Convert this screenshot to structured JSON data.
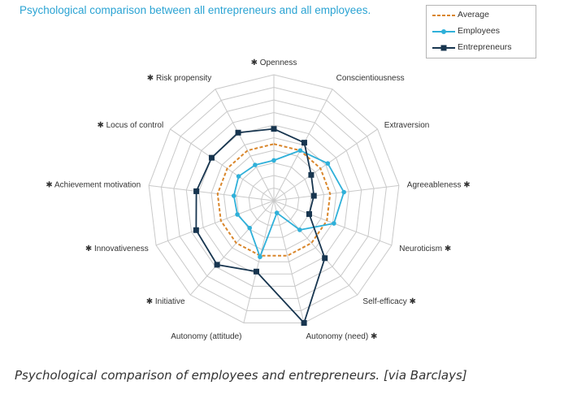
{
  "chart_data": {
    "type": "radar",
    "title": "Psychological comparison between all entrepreneurs and all employees.",
    "axes": [
      {
        "label": "✱ Openness"
      },
      {
        "label": "Conscientiousness"
      },
      {
        "label": "Extraversion"
      },
      {
        "label": "Agreeableness ✱"
      },
      {
        "label": "Neuroticism ✱"
      },
      {
        "label": "Self-efficacy ✱"
      },
      {
        "label": "Autonomy (need) ✱"
      },
      {
        "label": "Autonomy (attitude)"
      },
      {
        "label": "✱ Initiative"
      },
      {
        "label": "✱ Innovativeness"
      },
      {
        "label": "✱ Achievement motivation"
      },
      {
        "label": "✱ Locus of control"
      },
      {
        "label": "✱ Risk propensity"
      }
    ],
    "rings": 10,
    "max": 10,
    "series": [
      {
        "name": "Average",
        "color": "#d9862b",
        "marker": "none",
        "dash": true,
        "values": [
          4.5,
          4.5,
          4.5,
          4.5,
          4.5,
          4.5,
          4.5,
          4.5,
          4.5,
          4.5,
          4.5,
          4.5,
          4.5
        ]
      },
      {
        "name": "Employees",
        "color": "#2fb0d9",
        "marker": "circle",
        "dash": false,
        "values": [
          3.2,
          4.5,
          5.2,
          5.6,
          5.1,
          3.1,
          1.0,
          4.6,
          2.9,
          3.1,
          3.2,
          3.4,
          3.2
        ]
      },
      {
        "name": "Entrepreneurs",
        "color": "#17354f",
        "marker": "square",
        "dash": false,
        "values": [
          5.7,
          5.2,
          3.6,
          3.2,
          3.0,
          6.1,
          10.0,
          5.8,
          6.8,
          6.6,
          6.2,
          6.0,
          6.1
        ]
      }
    ],
    "legend_position": "top-right"
  },
  "caption": "Psychological comparison of employees and entrepreneurs. [via Barclays]"
}
